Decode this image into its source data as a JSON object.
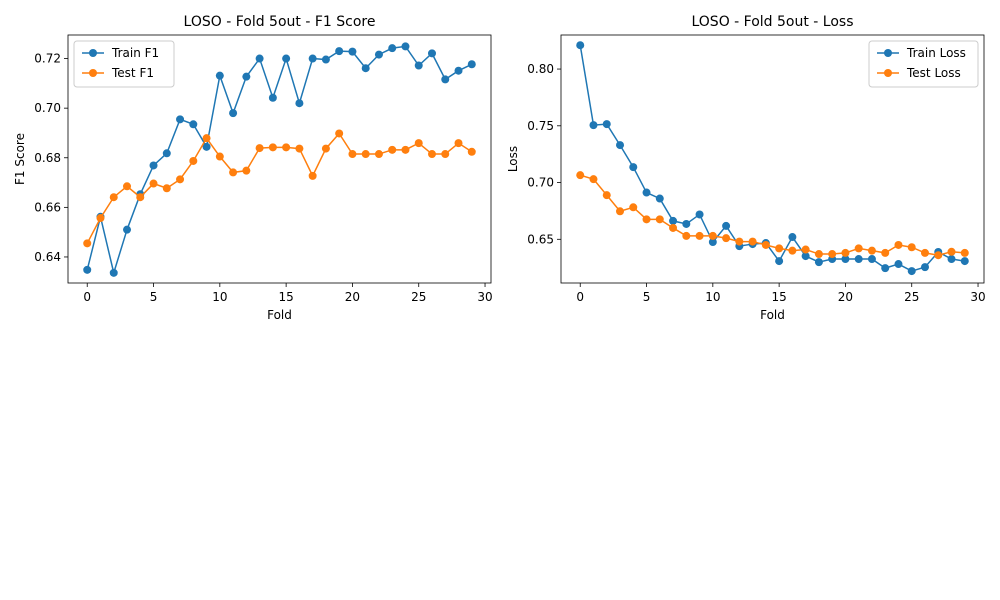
{
  "chart_data": [
    {
      "type": "line",
      "title": "LOSO - Fold 5out - F1 Score",
      "xlabel": "Fold",
      "ylabel": "F1 Score",
      "xlim": [
        -1.45,
        30.45
      ],
      "ylim": [
        0.6295,
        0.7295
      ],
      "xticks": [
        0,
        5,
        10,
        15,
        20,
        25,
        30
      ],
      "yticks": [
        0.64,
        0.66,
        0.68,
        0.7,
        0.72
      ],
      "ytick_labels": [
        "0.64",
        "0.66",
        "0.68",
        "0.70",
        "0.72"
      ],
      "legend_position": "upper-left",
      "grid": false,
      "x": [
        0,
        1,
        2,
        3,
        4,
        5,
        6,
        7,
        8,
        9,
        10,
        11,
        12,
        13,
        14,
        15,
        16,
        17,
        18,
        19,
        20,
        21,
        22,
        23,
        24,
        25,
        26,
        27,
        28,
        29
      ],
      "series": [
        {
          "name": "Train F1",
          "color": "#1f77b4",
          "values": [
            0.6348,
            0.6562,
            0.6336,
            0.651,
            0.6653,
            0.6769,
            0.6818,
            0.6955,
            0.6935,
            0.6844,
            0.7131,
            0.698,
            0.7127,
            0.72,
            0.7042,
            0.72,
            0.702,
            0.72,
            0.7196,
            0.723,
            0.7228,
            0.7161,
            0.7216,
            0.7242,
            0.7249,
            0.7172,
            0.7221,
            0.7116,
            0.7151,
            0.7177
          ]
        },
        {
          "name": "Test F1",
          "color": "#ff7f0e",
          "values": [
            0.6455,
            0.6557,
            0.6641,
            0.6685,
            0.6641,
            0.6696,
            0.6677,
            0.6713,
            0.6787,
            0.6879,
            0.6805,
            0.6741,
            0.6748,
            0.6839,
            0.6842,
            0.6842,
            0.6837,
            0.6727,
            0.6837,
            0.6898,
            0.6815,
            0.6815,
            0.6815,
            0.6832,
            0.6832,
            0.6859,
            0.6815,
            0.6815,
            0.6859,
            0.6824
          ]
        }
      ]
    },
    {
      "type": "line",
      "title": "LOSO - Fold 5out - Loss",
      "xlabel": "Fold",
      "ylabel": "Loss",
      "xlim": [
        -1.45,
        30.45
      ],
      "ylim": [
        0.6115,
        0.83
      ],
      "xticks": [
        0,
        5,
        10,
        15,
        20,
        25,
        30
      ],
      "yticks": [
        0.65,
        0.7,
        0.75,
        0.8
      ],
      "ytick_labels": [
        "0.65",
        "0.70",
        "0.75",
        "0.80"
      ],
      "legend_position": "upper-right",
      "grid": false,
      "x": [
        0,
        1,
        2,
        3,
        4,
        5,
        6,
        7,
        8,
        9,
        10,
        11,
        12,
        13,
        14,
        15,
        16,
        17,
        18,
        19,
        20,
        21,
        22,
        23,
        24,
        25,
        26,
        27,
        28,
        29
      ],
      "series": [
        {
          "name": "Train Loss",
          "color": "#1f77b4",
          "values": [
            0.821,
            0.7506,
            0.7515,
            0.733,
            0.7136,
            0.6912,
            0.6859,
            0.6662,
            0.6635,
            0.6719,
            0.6476,
            0.6618,
            0.644,
            0.6458,
            0.6467,
            0.6308,
            0.652,
            0.6352,
            0.6299,
            0.6326,
            0.6326,
            0.6326,
            0.6326,
            0.6246,
            0.6282,
            0.622,
            0.6255,
            0.6388,
            0.6326,
            0.6308
          ]
        },
        {
          "name": "Test Loss",
          "color": "#ff7f0e",
          "values": [
            0.7065,
            0.703,
            0.6889,
            0.6747,
            0.6782,
            0.6676,
            0.6676,
            0.66,
            0.653,
            0.653,
            0.653,
            0.651,
            0.648,
            0.648,
            0.645,
            0.642,
            0.64,
            0.641,
            0.637,
            0.637,
            0.638,
            0.642,
            0.64,
            0.638,
            0.645,
            0.643,
            0.638,
            0.636,
            0.639,
            0.638
          ]
        }
      ]
    }
  ]
}
